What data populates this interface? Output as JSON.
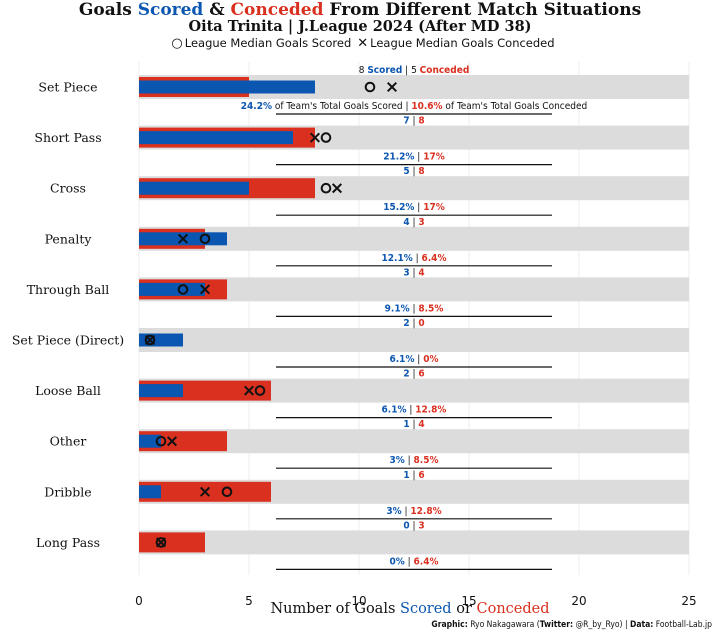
{
  "title": {
    "prefix": "Goals ",
    "scored_word": "Scored",
    "amp": " & ",
    "conceded_word": "Conceded",
    "suffix": " From Different Match Situations"
  },
  "subtitle": "Oita Trinita | J.League 2024 (After MD 38)",
  "legend": {
    "scored_label": "League Median Goals Scored",
    "conceded_label": "League Median Goals Conceded"
  },
  "xlabel": {
    "prefix": "Number of Goals ",
    "scored_word": "Scored",
    "or": " or ",
    "conceded_word": "Conceded"
  },
  "credit": {
    "graphic_label": "Graphic:",
    "graphic_value": " Ryo Nakagawara (",
    "twitter_label": "Twitter:",
    "twitter_value": " @R_by_Ryo) | ",
    "data_label": "Data:",
    "data_value": " Football-Lab.jp"
  },
  "annotation_text": {
    "scored_word": "Scored",
    "conceded_word": "Conceded",
    "of_team_scored": " of Team's Total Goals Scored",
    "of_team_conceded": " of Team's Total Goals Conceded"
  },
  "colors": {
    "scored": "#0b56b0",
    "conceded": "#d93020",
    "background_bar": "#dcdcdc"
  },
  "chart_data": {
    "type": "bar",
    "orientation": "horizontal",
    "xlim": [
      0,
      25
    ],
    "bg_bar_max": 25,
    "xticks": [
      0,
      5,
      10,
      15,
      20,
      25
    ],
    "grid": "vertical",
    "categories": [
      "Set Piece",
      "Short Pass",
      "Cross",
      "Penalty",
      "Through Ball",
      "Set Piece (Direct)",
      "Loose Ball",
      "Other",
      "Dribble",
      "Long Pass"
    ],
    "series": [
      {
        "name": "Scored",
        "values": [
          8,
          7,
          5,
          4,
          3,
          2,
          2,
          1,
          1,
          0
        ]
      },
      {
        "name": "Conceded",
        "values": [
          5,
          8,
          8,
          3,
          4,
          0,
          6,
          4,
          6,
          3
        ]
      }
    ],
    "league_median_scored": [
      10.5,
      8.5,
      8.5,
      3,
      2,
      0.5,
      5.5,
      1,
      4,
      1
    ],
    "league_median_conceded": [
      11.5,
      8,
      9,
      2,
      3,
      0.5,
      5,
      1.5,
      3,
      1
    ],
    "pct_of_team_scored": [
      "24.2%",
      "21.2%",
      "15.2%",
      "12.1%",
      "9.1%",
      "6.1%",
      "6.1%",
      "3%",
      "3%",
      "0%"
    ],
    "pct_of_team_conceded": [
      "10.6%",
      "17%",
      "17%",
      "6.4%",
      "8.5%",
      "0%",
      "12.8%",
      "8.5%",
      "12.8%",
      "6.4%"
    ]
  }
}
